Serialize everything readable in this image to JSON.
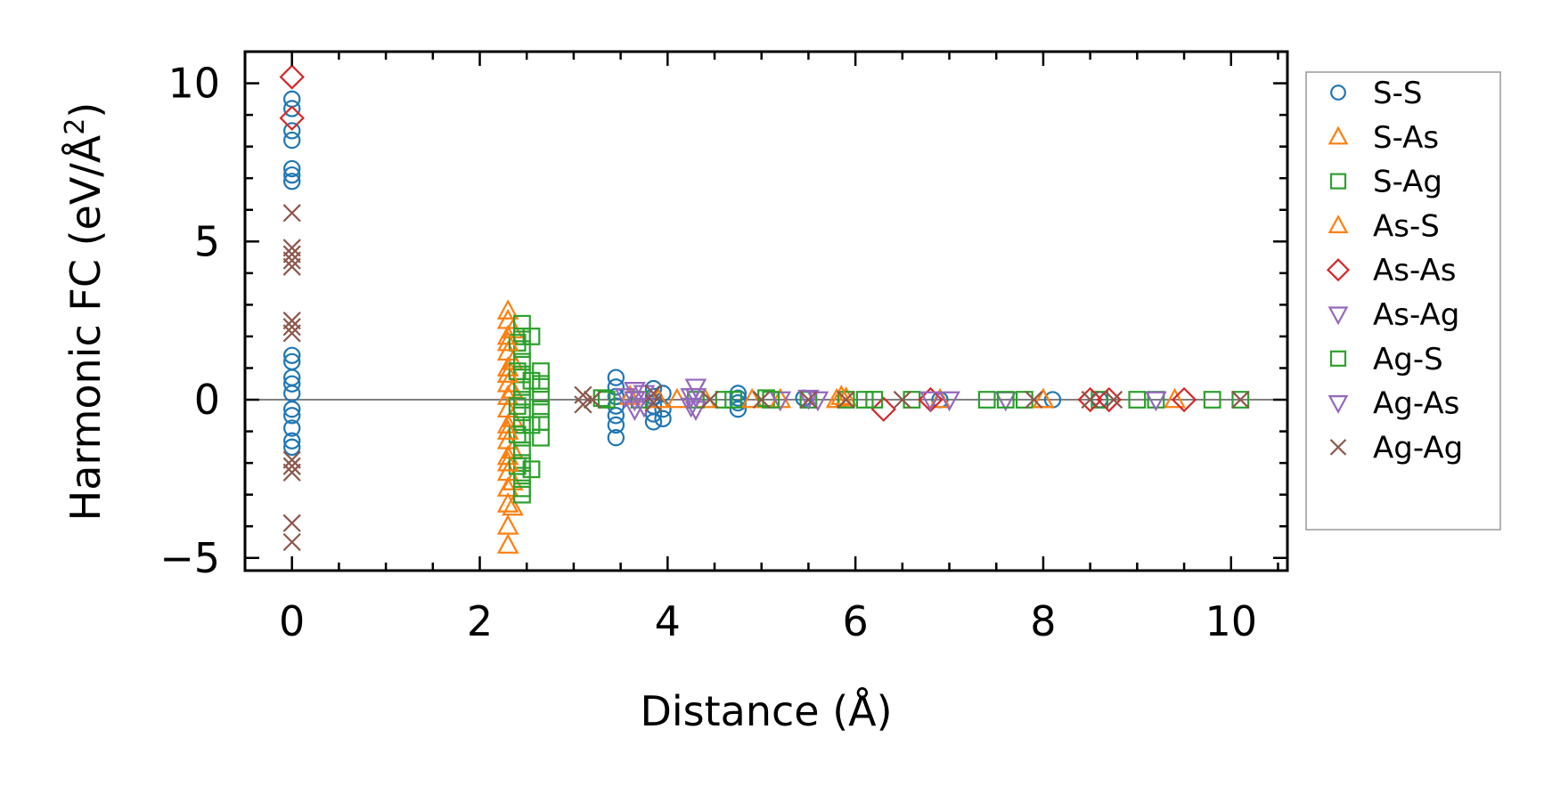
{
  "chart_data": {
    "type": "scatter",
    "xlabel": "Distance (Å)",
    "ylabel": "Harmonic FC (eV/Å",
    "ylabel_sup": "2",
    "ylabel_close": ")",
    "xlim": [
      -0.5,
      10.6
    ],
    "ylim": [
      -5.4,
      11.0
    ],
    "xticks": [
      0,
      2,
      4,
      6,
      8,
      10
    ],
    "xtick_labels": [
      "0",
      "2",
      "4",
      "6",
      "8",
      "10"
    ],
    "yticks": [
      -5,
      0,
      5,
      10
    ],
    "ytick_labels": [
      "−5",
      "0",
      "5",
      "10"
    ],
    "x_minor_step": 0.5,
    "y_minor_step": 1,
    "zero_line": true,
    "legend_position": "outside-right",
    "series": [
      {
        "name": "S-S",
        "marker": "circle",
        "color": "#1f77b4",
        "points": [
          [
            0,
            9.5
          ],
          [
            0,
            9.2
          ],
          [
            0,
            8.5
          ],
          [
            0,
            8.2
          ],
          [
            0,
            7.3
          ],
          [
            0,
            7.1
          ],
          [
            0,
            6.9
          ],
          [
            0,
            1.4
          ],
          [
            0,
            1.2
          ],
          [
            0,
            0.7
          ],
          [
            0,
            0.5
          ],
          [
            0,
            0.2
          ],
          [
            0,
            -0.3
          ],
          [
            0,
            -0.5
          ],
          [
            0,
            -0.9
          ],
          [
            0,
            -1.3
          ],
          [
            0,
            -1.5
          ],
          [
            3.45,
            0.7
          ],
          [
            3.45,
            0.4
          ],
          [
            3.45,
            0.1
          ],
          [
            3.45,
            -0.2
          ],
          [
            3.45,
            -0.5
          ],
          [
            3.45,
            -0.8
          ],
          [
            3.45,
            -1.2
          ],
          [
            3.85,
            0.35
          ],
          [
            3.85,
            0.1
          ],
          [
            3.85,
            -0.2
          ],
          [
            3.85,
            -0.45
          ],
          [
            3.85,
            -0.7
          ],
          [
            3.95,
            0.2
          ],
          [
            3.95,
            -0.3
          ],
          [
            3.95,
            -0.6
          ],
          [
            4.75,
            0.2
          ],
          [
            4.75,
            0.05
          ],
          [
            4.75,
            -0.1
          ],
          [
            4.75,
            -0.3
          ],
          [
            5.45,
            0.05
          ],
          [
            6.9,
            0.0
          ],
          [
            8.1,
            0.0
          ],
          [
            8.6,
            0.0
          ]
        ]
      },
      {
        "name": "S-As",
        "marker": "triangle-up",
        "color": "#ff7f0e",
        "points": [
          [
            2.3,
            2.8
          ],
          [
            2.3,
            2.5
          ],
          [
            2.3,
            2.0
          ],
          [
            2.3,
            1.5
          ],
          [
            2.3,
            1.0
          ],
          [
            2.3,
            0.5
          ],
          [
            2.3,
            0.1
          ],
          [
            2.3,
            -0.3
          ],
          [
            2.3,
            -0.8
          ],
          [
            2.3,
            -1.3
          ],
          [
            2.3,
            -1.8
          ],
          [
            2.3,
            -2.3
          ],
          [
            2.3,
            -2.8
          ],
          [
            2.3,
            -3.3
          ],
          [
            2.3,
            -4.0
          ],
          [
            2.3,
            -4.6
          ],
          [
            2.35,
            2.2
          ],
          [
            2.35,
            1.2
          ],
          [
            2.35,
            0.3
          ],
          [
            2.35,
            -0.6
          ],
          [
            2.35,
            -1.6
          ],
          [
            2.35,
            -2.6
          ],
          [
            2.35,
            -3.4
          ],
          [
            3.6,
            0.1
          ],
          [
            4.1,
            0.0
          ],
          [
            4.4,
            0.0
          ],
          [
            4.9,
            0.0
          ],
          [
            5.8,
            0.0
          ],
          [
            5.9,
            0.05
          ],
          [
            6.9,
            0.0
          ],
          [
            8.0,
            0.0
          ],
          [
            9.4,
            0.0
          ]
        ]
      },
      {
        "name": "S-Ag",
        "marker": "square",
        "color": "#2ca02c",
        "points": [
          [
            2.45,
            2.4
          ],
          [
            2.45,
            2.0
          ],
          [
            2.45,
            1.6
          ],
          [
            2.45,
            1.2
          ],
          [
            2.45,
            0.8
          ],
          [
            2.45,
            0.4
          ],
          [
            2.45,
            0.0
          ],
          [
            2.45,
            -0.4
          ],
          [
            2.45,
            -0.8
          ],
          [
            2.45,
            -1.2
          ],
          [
            2.45,
            -1.6
          ],
          [
            2.45,
            -2.0
          ],
          [
            2.45,
            -2.4
          ],
          [
            2.45,
            -2.8
          ],
          [
            2.45,
            -3.0
          ],
          [
            2.4,
            1.8
          ],
          [
            2.4,
            0.9
          ],
          [
            2.4,
            -0.2
          ],
          [
            2.4,
            -1.1
          ],
          [
            2.4,
            -2.1
          ],
          [
            2.65,
            0.9
          ],
          [
            2.65,
            0.5
          ],
          [
            2.65,
            0.1
          ],
          [
            2.65,
            -0.3
          ],
          [
            2.65,
            -0.7
          ],
          [
            2.65,
            -1.2
          ],
          [
            3.3,
            0.05
          ],
          [
            3.7,
            0.0
          ],
          [
            4.3,
            0.0
          ],
          [
            4.6,
            0.0
          ],
          [
            5.05,
            0.05
          ],
          [
            5.5,
            0.0
          ],
          [
            5.9,
            0.0
          ],
          [
            6.1,
            0.0
          ],
          [
            6.6,
            0.0
          ],
          [
            7.4,
            0.0
          ],
          [
            7.8,
            0.0
          ],
          [
            8.6,
            0.0
          ],
          [
            9.2,
            0.0
          ],
          [
            9.8,
            0.0
          ],
          [
            10.1,
            0.0
          ]
        ]
      },
      {
        "name": "As-S",
        "marker": "triangle-up",
        "color": "#ff7f0e",
        "points": [
          [
            2.3,
            1.8
          ],
          [
            2.3,
            0.8
          ],
          [
            2.3,
            -1.0
          ],
          [
            2.3,
            -2.0
          ],
          [
            3.9,
            0.0
          ],
          [
            5.2,
            0.0
          ],
          [
            5.85,
            0.1
          ],
          [
            8.0,
            0.0
          ]
        ]
      },
      {
        "name": "As-As",
        "marker": "diamond",
        "color": "#d62728",
        "points": [
          [
            0,
            10.2
          ],
          [
            0,
            8.9
          ],
          [
            6.3,
            -0.3
          ],
          [
            6.8,
            0.0
          ],
          [
            8.5,
            0.0
          ],
          [
            8.7,
            0.0
          ],
          [
            9.5,
            0.0
          ]
        ]
      },
      {
        "name": "As-Ag",
        "marker": "triangle-down",
        "color": "#9467bd",
        "points": [
          [
            3.65,
            0.3
          ],
          [
            3.65,
            0.0
          ],
          [
            3.65,
            -0.3
          ],
          [
            4.3,
            0.4
          ],
          [
            4.3,
            0.1
          ],
          [
            4.3,
            -0.3
          ],
          [
            5.2,
            0.0
          ],
          [
            5.5,
            0.05
          ],
          [
            6.8,
            0.0
          ],
          [
            7.6,
            0.0
          ],
          [
            9.2,
            0.0
          ]
        ]
      },
      {
        "name": "Ag-S",
        "marker": "square",
        "color": "#2ca02c",
        "points": [
          [
            2.55,
            2.0
          ],
          [
            2.55,
            0.6
          ],
          [
            2.55,
            -0.8
          ],
          [
            2.55,
            -2.2
          ],
          [
            3.35,
            0.0
          ],
          [
            4.7,
            0.0
          ],
          [
            5.1,
            0.0
          ],
          [
            6.2,
            0.0
          ],
          [
            7.6,
            0.0
          ],
          [
            9.0,
            0.0
          ]
        ]
      },
      {
        "name": "Ag-As",
        "marker": "triangle-down",
        "color": "#9467bd",
        "points": [
          [
            3.55,
            0.1
          ],
          [
            3.75,
            0.2
          ],
          [
            3.75,
            -0.2
          ],
          [
            4.25,
            0.1
          ],
          [
            4.25,
            -0.2
          ],
          [
            5.6,
            0.0
          ],
          [
            7.0,
            0.0
          ]
        ]
      },
      {
        "name": "Ag-Ag",
        "marker": "x",
        "color": "#8c564b",
        "points": [
          [
            0,
            5.9
          ],
          [
            0,
            4.8
          ],
          [
            0,
            4.6
          ],
          [
            0,
            4.4
          ],
          [
            0,
            4.2
          ],
          [
            0,
            2.5
          ],
          [
            0,
            2.3
          ],
          [
            0,
            2.1
          ],
          [
            0,
            -1.9
          ],
          [
            0,
            -2.1
          ],
          [
            0,
            -2.3
          ],
          [
            0,
            -3.9
          ],
          [
            0,
            -4.5
          ],
          [
            3.1,
            0.15
          ],
          [
            3.1,
            -0.15
          ],
          [
            3.2,
            0.0
          ],
          [
            3.85,
            0.2
          ],
          [
            3.85,
            -0.1
          ],
          [
            4.45,
            0.0
          ],
          [
            5.0,
            0.0
          ],
          [
            5.5,
            0.0
          ],
          [
            5.9,
            0.0
          ],
          [
            6.5,
            0.0
          ],
          [
            7.9,
            0.0
          ],
          [
            8.5,
            0.0
          ],
          [
            8.75,
            0.0
          ],
          [
            10.1,
            0.0
          ]
        ]
      }
    ]
  }
}
